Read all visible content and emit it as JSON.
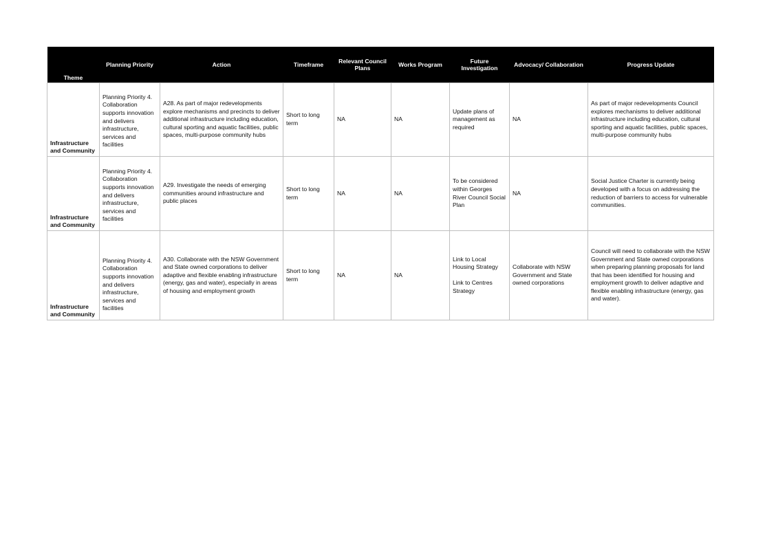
{
  "table": {
    "headers": {
      "theme": "Theme",
      "planning_priority": "Planning Priority",
      "action": "Action",
      "timeframe": "Timeframe",
      "relevant_council_plans": "Relevant  Council Plans",
      "works_program": "Works  Program",
      "future_investigation": "Future Investigation",
      "advocacy_collaboration": "Advocacy/  Collaboration",
      "progress_update": "Progress Update"
    },
    "rows": [
      {
        "theme": "Infrastructure and Community",
        "planning_priority": "Planning Priority 4. Collaboration supports innovation and delivers infrastructure, services and facilities",
        "action": "A28. As part of major redevelopments explore mechanisms and precincts to deliver additional infrastructure including education, cultural sporting and aquatic facilities, public spaces, multi-purpose community hubs",
        "timeframe": "Short to long term",
        "relevant_council_plans": "NA",
        "works_program": "NA",
        "future_investigation": "Update plans of management as required",
        "future_investigation_2": "",
        "advocacy_collaboration": "NA",
        "progress_update": "As part of major redevelopments Council explores mechanisms to deliver additional infrastructure including education, cultural sporting and aquatic facilities, public spaces, multi-purpose community hubs"
      },
      {
        "theme": "Infrastructure and Community",
        "planning_priority": "Planning Priority 4. Collaboration supports innovation and delivers infrastructure, services and facilities",
        "action": "A29. Investigate the needs of emerging communities around infrastructure and public places",
        "timeframe": "Short to long term",
        "relevant_council_plans": "NA",
        "works_program": "NA",
        "future_investigation": "To be considered within Georges River Council Social Plan",
        "future_investigation_2": "",
        "advocacy_collaboration": "NA",
        "progress_update": "Social Justice Charter is currently being developed with a focus on addressing the reduction of barriers to access for vulnerable communities."
      },
      {
        "theme": "Infrastructure and Community",
        "planning_priority": "Planning Priority 4. Collaboration supports innovation and delivers infrastructure, services and facilities",
        "action": "A30. Collaborate with the NSW Government and State owned corporations to deliver adaptive and flexible enabling infrastructure (energy, gas and water), especially in areas of housing and employment growth",
        "timeframe": "Short to long term",
        "relevant_council_plans": "NA",
        "works_program": "NA",
        "future_investigation": "Link to Local Housing Strategy",
        "future_investigation_2": "Link to Centres Strategy",
        "advocacy_collaboration": "Collaborate with NSW Government and State owned corporations",
        "progress_update": "Council will need to collaborate with the NSW Government and State owned corporations when preparing planning proposals for land that has been identified for housing and employment growth to deliver adaptive and flexible enabling infrastructure (energy, gas and water)."
      }
    ]
  }
}
